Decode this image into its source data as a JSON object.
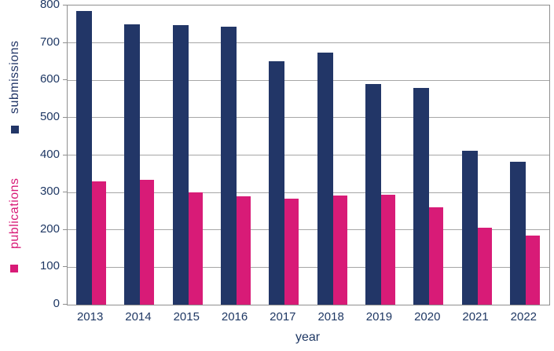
{
  "chart_data": {
    "type": "bar",
    "title": "",
    "xlabel": "year",
    "categories": [
      "2013",
      "2014",
      "2015",
      "2016",
      "2017",
      "2018",
      "2019",
      "2020",
      "2021",
      "2022"
    ],
    "series": [
      {
        "name": "submissions",
        "color": "#223667",
        "values": [
          785,
          750,
          748,
          744,
          650,
          675,
          590,
          580,
          412,
          383
        ]
      },
      {
        "name": "publications",
        "color": "#d81b77",
        "values": [
          330,
          333,
          300,
          290,
          284,
          291,
          293,
          260,
          206,
          185
        ]
      }
    ],
    "ylim": [
      0,
      800
    ],
    "y_ticks": [
      0,
      100,
      200,
      300,
      400,
      500,
      600,
      700,
      800
    ],
    "grid": "horizontal",
    "legend_position": "left"
  },
  "colors": {
    "axis_text": "#1f3864",
    "gridline": "#a6a6a6",
    "border": "#8f8f8f",
    "background": "#ffffff"
  }
}
